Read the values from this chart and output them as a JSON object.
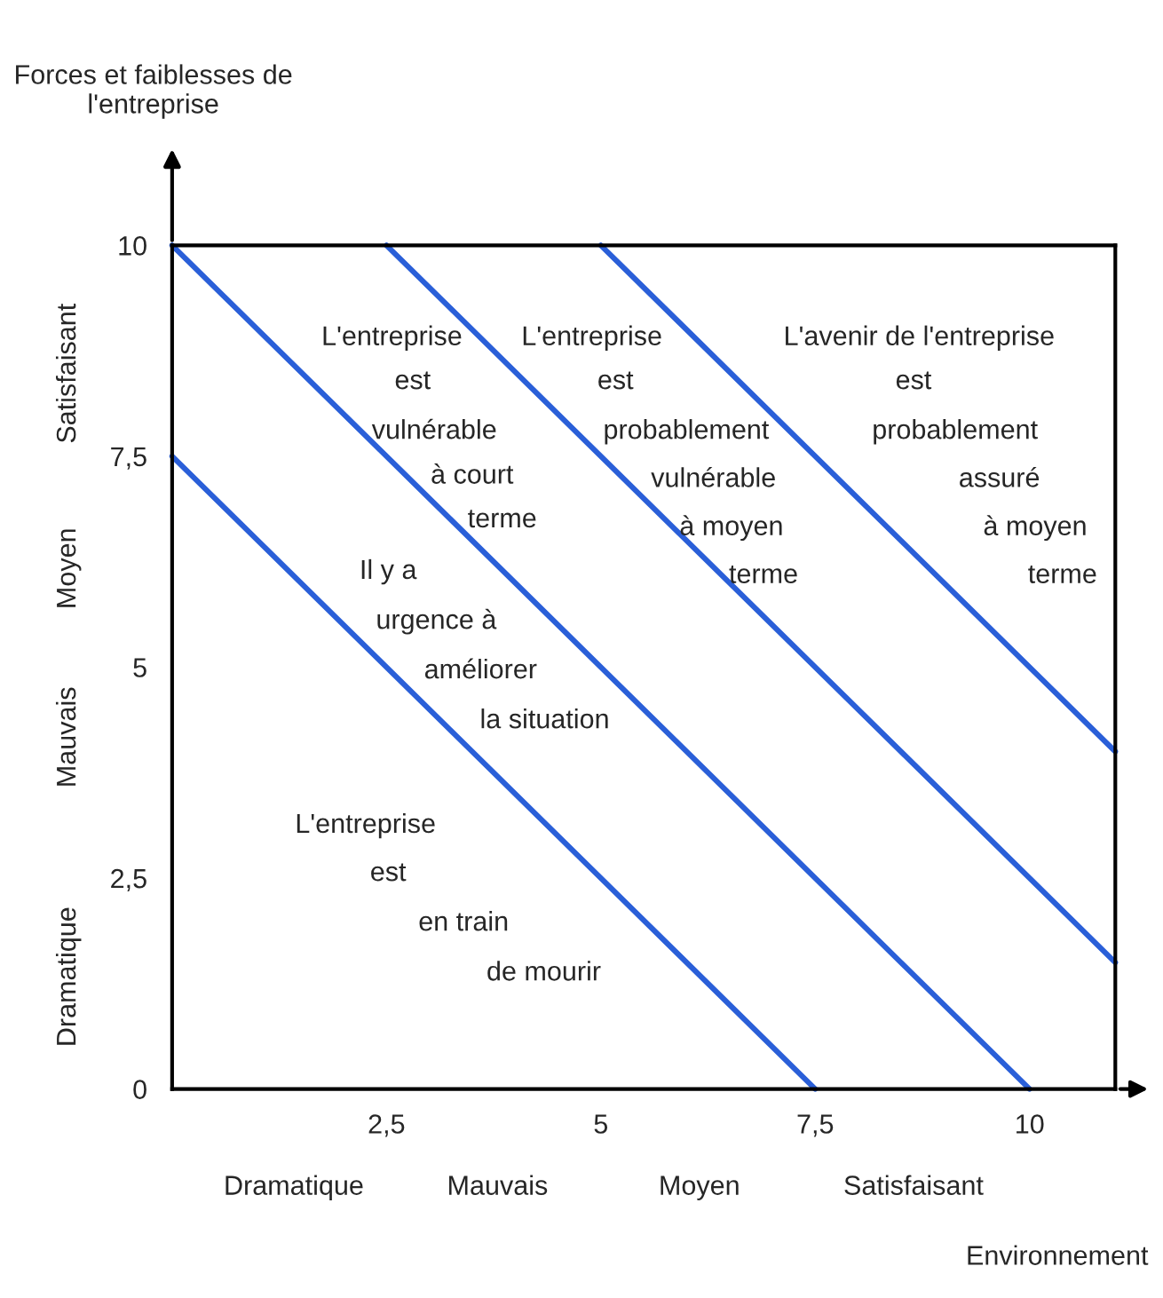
{
  "chart_data": {
    "type": "line",
    "xlabel": "Environnement",
    "ylabel": "Forces et faiblesses de\nl'entreprise",
    "xlim": [
      0,
      11
    ],
    "ylim": [
      0,
      10
    ],
    "xticks": [
      {
        "value": 0,
        "label": null
      },
      {
        "value": 2.5,
        "label": "2,5"
      },
      5,
      {
        "value": 7.5,
        "label": "7,5"
      },
      10
    ],
    "yticks": [
      0,
      {
        "value": 2.5,
        "label": "2,5"
      },
      5,
      {
        "value": 7.5,
        "label": "7,5"
      },
      10
    ],
    "grid": false,
    "legend": false,
    "marker": "none",
    "line_style": "solid",
    "series": [
      {
        "color": "#2a5fd8",
        "x": [
          0,
          7.5
        ],
        "values": [
          7.5,
          0
        ]
      },
      {
        "color": "#2a5fd8",
        "x": [
          0,
          10
        ],
        "values": [
          10,
          0
        ]
      },
      {
        "color": "#2a5fd8",
        "x": [
          2.5,
          11
        ],
        "values": [
          10,
          1.5
        ]
      },
      {
        "color": "#2a5fd8",
        "x": [
          5,
          11
        ],
        "values": [
          10,
          4
        ]
      }
    ],
    "annotations": [
      "L'entreprise",
      "est",
      "vulnérable",
      "à court",
      "terme",
      "L'entreprise",
      "est",
      "probablement",
      "vulnérable",
      "à moyen",
      "terme",
      "L'avenir de l'entreprise",
      "est",
      "probablement",
      "assuré",
      "à moyen",
      "terme",
      "Il y a",
      "urgence à",
      "améliorer",
      "la situation",
      "L'entreprise",
      "est",
      "en train",
      "de mourir",
      "Dramatique",
      "Mauvais",
      "Moyen",
      "Satisfaisant",
      "Dramatique",
      "Mauvais",
      "Moyen",
      "Satisfaisant"
    ]
  }
}
